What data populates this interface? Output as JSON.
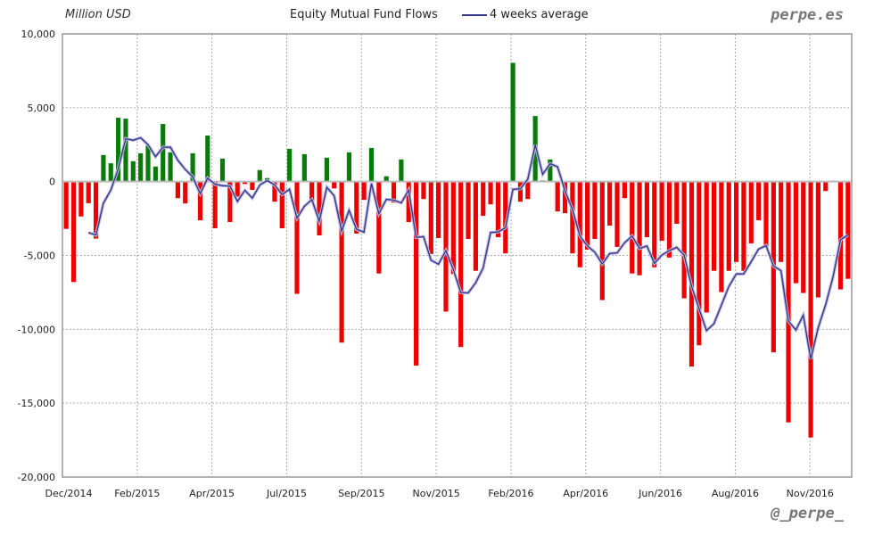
{
  "chart_data": {
    "type": "bar",
    "title": "Equity Mutual Fund Flows",
    "ylabel": "Million USD",
    "xlabel": "",
    "ylim": [
      -20000,
      10000
    ],
    "yticks": [
      10000,
      5000,
      0,
      -5000,
      -10000,
      -15000,
      -20000
    ],
    "ytick_labels": [
      "10,000",
      "5,000",
      "0",
      "-5,000",
      "-10,000",
      "-15,000",
      "-20,000"
    ],
    "xtick_labels": [
      "Dec/2014",
      "Feb/2015",
      "Apr/2015",
      "Jul/2015",
      "Sep/2015",
      "Nov/2015",
      "Feb/2016",
      "Apr/2016",
      "Jun/2016",
      "Aug/2016",
      "Nov/2016"
    ],
    "grid": true,
    "positive_color": "#0a7a0a",
    "negative_color": "#ee0000",
    "series": [
      {
        "name": "",
        "type": "bar",
        "values": [
          -3200,
          -6800,
          -2360,
          -1460,
          -3860,
          1800,
          1240,
          4320,
          4260,
          1380,
          1920,
          2440,
          1020,
          3900,
          1980,
          -1120,
          -1480,
          1920,
          -2620,
          3120,
          -3160,
          1560,
          -2740,
          -1020,
          -160,
          -560,
          780,
          240,
          -1360,
          -3160,
          2220,
          -7600,
          1860,
          -1360,
          -3640,
          1620,
          -460,
          -10900,
          1980,
          -3520,
          -1240,
          2280,
          -6220,
          360,
          -1420,
          1500,
          -2740,
          -12460,
          -1180,
          -4900,
          -3820,
          -8800,
          -6260,
          -11200,
          -3880,
          -6040,
          -2320,
          -1540,
          -3760,
          -4860,
          8040,
          -1360,
          -1180,
          4440,
          80,
          1500,
          -2020,
          -2140,
          -4860,
          -5800,
          -4600,
          -3880,
          -8020,
          -2980,
          -4420,
          -1120,
          -6220,
          -6340,
          -3760,
          -5800,
          -4000,
          -5140,
          -2860,
          -7900,
          -12520,
          -11080,
          -8860,
          -6040,
          -7480,
          -6040,
          -5440,
          -6040,
          -4180,
          -2620,
          -4480,
          -11560,
          -5440,
          -16300,
          -6880,
          -7540,
          -17320,
          -7840,
          -640,
          60,
          -7300,
          -6580
        ]
      },
      {
        "name": "4 weeks average",
        "type": "line",
        "window": 4,
        "color": "#333388"
      }
    ]
  },
  "header": {
    "brand": "perpe.es"
  },
  "footer": {
    "handle": "@_perpe_"
  }
}
